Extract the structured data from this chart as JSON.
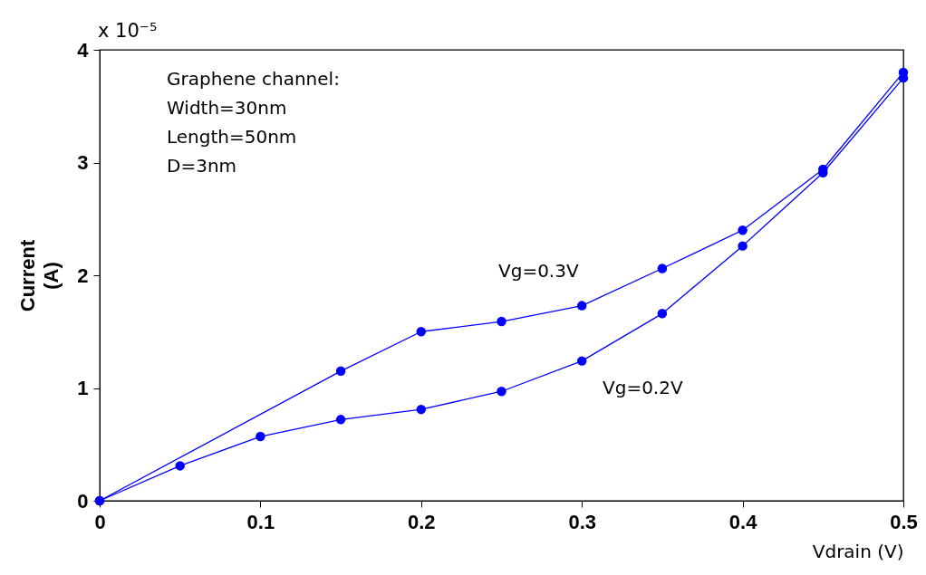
{
  "chart_data": {
    "type": "line",
    "xlabel": "Vdrain (V)",
    "ylabel": "Current (A)",
    "xlim": [
      0,
      0.5
    ],
    "xticks": [
      0,
      0.1,
      0.2,
      0.3,
      0.4,
      0.5
    ],
    "ylim": [
      0,
      4
    ],
    "yticks": [
      0,
      1,
      2,
      3,
      4
    ],
    "grid": false,
    "legend": false,
    "marker": "circle",
    "line_style": "solid",
    "annotations": [
      "x 10⁻⁵",
      "Graphene channel:",
      "Width=30nm",
      "Length=50nm",
      "D=3nm"
    ],
    "series": [
      {
        "name": "Vg=0.3V",
        "color": "#0000ff",
        "x": [
          0,
          0.15,
          0.2,
          0.25,
          0.3,
          0.35,
          0.4,
          0.45,
          0.5
        ],
        "values": [
          0,
          1.15,
          1.5,
          1.59,
          1.73,
          2.06,
          2.4,
          2.94,
          3.8
        ]
      },
      {
        "name": "Vg=0.2V",
        "color": "#0000ff",
        "x": [
          0,
          0.05,
          0.1,
          0.15,
          0.2,
          0.25,
          0.3,
          0.35,
          0.4,
          0.45,
          0.5
        ],
        "values": [
          0,
          0.31,
          0.57,
          0.72,
          0.81,
          0.97,
          1.24,
          1.66,
          2.26,
          2.91,
          3.75
        ]
      }
    ]
  }
}
